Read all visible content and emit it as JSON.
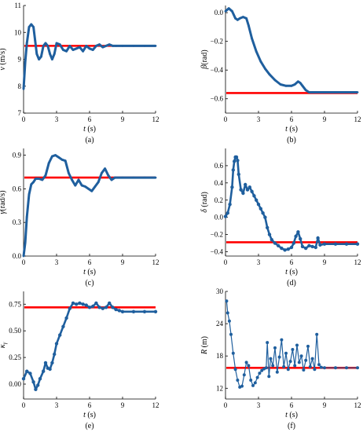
{
  "chart_data": [
    {
      "panel_label": "(a)",
      "type": "line",
      "xlabel_sym": "t",
      "xlabel_unit": " (s)",
      "ylabel_sym": "v",
      "ylabel_unit": " (m/s)",
      "xlim": [
        0,
        12
      ],
      "ylim": [
        7,
        11
      ],
      "xticks": [
        0,
        3,
        6,
        9,
        12
      ],
      "yticks": [
        7,
        8,
        9,
        10,
        11
      ],
      "xtick_labels": [
        "0",
        "3",
        "6",
        "9",
        "12"
      ],
      "ytick_labels": [
        "7",
        "8",
        "9",
        "10",
        "11"
      ],
      "reference": 9.5,
      "reference_color": "#ff0000",
      "series_color": "#1f5f9e",
      "x": [
        0,
        0.15,
        0.3,
        0.5,
        0.7,
        0.9,
        1.05,
        1.2,
        1.4,
        1.6,
        1.8,
        2.0,
        2.2,
        2.4,
        2.6,
        2.8,
        3.0,
        3.3,
        3.6,
        3.9,
        4.2,
        4.5,
        4.8,
        5.1,
        5.4,
        5.7,
        6.0,
        6.3,
        6.6,
        6.9,
        7.2,
        7.5,
        7.8,
        8.1,
        8.4,
        9,
        10,
        11,
        12
      ],
      "y": [
        7.9,
        8.9,
        9.6,
        10.2,
        10.3,
        10.2,
        9.7,
        9.2,
        9.0,
        9.1,
        9.5,
        9.6,
        9.5,
        9.2,
        9.0,
        9.2,
        9.6,
        9.55,
        9.35,
        9.3,
        9.5,
        9.35,
        9.4,
        9.45,
        9.3,
        9.5,
        9.4,
        9.35,
        9.5,
        9.55,
        9.45,
        9.5,
        9.55,
        9.5,
        9.5,
        9.5,
        9.5,
        9.5,
        9.5
      ]
    },
    {
      "panel_label": "(b)",
      "type": "line",
      "xlabel_sym": "t",
      "xlabel_unit": " (s)",
      "ylabel_sym": "β",
      "ylabel_unit": "(rad)",
      "xlim": [
        0,
        12
      ],
      "ylim": [
        -0.7,
        0.05
      ],
      "xticks": [
        0,
        3,
        6,
        9,
        12
      ],
      "yticks": [
        0,
        -0.2,
        -0.4,
        -0.6
      ],
      "xtick_labels": [
        "0",
        "3",
        "6",
        "9",
        "12"
      ],
      "ytick_labels": [
        "0.0",
        "−0.2",
        "−0.4",
        "−0.6"
      ],
      "reference": -0.56,
      "reference_color": "#ff0000",
      "series_color": "#1f5f9e",
      "x": [
        0,
        0.3,
        0.6,
        0.9,
        1.1,
        1.3,
        1.6,
        1.9,
        2.1,
        2.4,
        2.8,
        3.2,
        3.6,
        4.0,
        4.5,
        5.0,
        5.5,
        6.0,
        6.3,
        6.6,
        6.8,
        7.0,
        7.3,
        7.6,
        8.0,
        9,
        10,
        11,
        12
      ],
      "y": [
        0.01,
        0.03,
        0.01,
        -0.04,
        -0.05,
        -0.04,
        -0.03,
        -0.04,
        -0.09,
        -0.18,
        -0.27,
        -0.34,
        -0.39,
        -0.43,
        -0.47,
        -0.5,
        -0.51,
        -0.51,
        -0.5,
        -0.48,
        -0.49,
        -0.51,
        -0.54,
        -0.555,
        -0.555,
        -0.555,
        -0.555,
        -0.555,
        -0.555
      ]
    },
    {
      "panel_label": "(c)",
      "type": "line",
      "xlabel_sym": "t",
      "xlabel_unit": " (s)",
      "ylabel_sym": "γ",
      "ylabel_unit": "(rad/s)",
      "xlim": [
        0,
        12
      ],
      "ylim": [
        0,
        0.96
      ],
      "xticks": [
        0,
        3,
        6,
        9,
        12
      ],
      "yticks": [
        0,
        0.3,
        0.6,
        0.9
      ],
      "xtick_labels": [
        "0",
        "3",
        "6",
        "9",
        "12"
      ],
      "ytick_labels": [
        "0.0",
        "0.3",
        "0.6",
        "0.9"
      ],
      "reference": 0.7,
      "reference_color": "#ff0000",
      "series_color": "#1f5f9e",
      "x": [
        0,
        0.15,
        0.3,
        0.5,
        0.7,
        0.9,
        1.1,
        1.4,
        1.7,
        2.0,
        2.3,
        2.6,
        2.9,
        3.2,
        3.5,
        3.8,
        4.1,
        4.4,
        4.7,
        5.0,
        5.3,
        5.6,
        5.9,
        6.2,
        6.5,
        6.8,
        7.1,
        7.4,
        7.7,
        8.0,
        8.3,
        9,
        10,
        11,
        12
      ],
      "y": [
        0,
        0.12,
        0.35,
        0.55,
        0.64,
        0.66,
        0.69,
        0.69,
        0.68,
        0.72,
        0.83,
        0.89,
        0.9,
        0.88,
        0.86,
        0.85,
        0.74,
        0.68,
        0.63,
        0.68,
        0.63,
        0.62,
        0.6,
        0.58,
        0.62,
        0.66,
        0.74,
        0.78,
        0.72,
        0.68,
        0.7,
        0.7,
        0.7,
        0.7,
        0.7
      ]
    },
    {
      "panel_label": "(d)",
      "type": "scatter",
      "xlabel_sym": "t",
      "xlabel_unit": " (s)",
      "ylabel_sym": "δ",
      "ylabel_unit": " (rad)",
      "xlim": [
        0,
        12
      ],
      "ylim": [
        -0.45,
        0.8
      ],
      "xticks": [
        0,
        3,
        6,
        9,
        12
      ],
      "yticks": [
        -0.4,
        -0.2,
        0,
        0.2,
        0.4,
        0.6
      ],
      "xtick_labels": [
        "0",
        "3",
        "6",
        "9",
        "12"
      ],
      "ytick_labels": [
        "−0.4",
        "−0.2",
        "0.0",
        "0.2",
        "0.4",
        "0.6"
      ],
      "reference": -0.29,
      "reference_color": "#ff0000",
      "series_color": "#1f5f9e",
      "x": [
        0,
        0.2,
        0.4,
        0.6,
        0.7,
        0.8,
        0.9,
        1.0,
        1.1,
        1.2,
        1.4,
        1.6,
        1.8,
        2.0,
        2.2,
        2.4,
        2.6,
        2.8,
        3.0,
        3.2,
        3.4,
        3.6,
        3.8,
        4.0,
        4.2,
        4.5,
        4.8,
        5.1,
        5.4,
        5.7,
        6.0,
        6.2,
        6.4,
        6.6,
        6.8,
        7.0,
        7.3,
        7.6,
        7.9,
        8.2,
        8.4,
        8.6,
        9,
        10,
        11,
        12
      ],
      "y": [
        0.01,
        0.05,
        0.15,
        0.35,
        0.55,
        0.65,
        0.7,
        0.7,
        0.66,
        0.5,
        0.32,
        0.28,
        0.38,
        0.32,
        0.35,
        0.3,
        0.25,
        0.2,
        0.15,
        0.1,
        0.05,
        0.0,
        -0.12,
        -0.2,
        -0.26,
        -0.3,
        -0.33,
        -0.36,
        -0.38,
        -0.37,
        -0.35,
        -0.3,
        -0.22,
        -0.17,
        -0.25,
        -0.34,
        -0.36,
        -0.33,
        -0.34,
        -0.35,
        -0.24,
        -0.32,
        -0.31,
        -0.31,
        -0.31,
        -0.31
      ]
    },
    {
      "panel_label": "(e)",
      "type": "scatter",
      "xlabel_sym": "t",
      "xlabel_unit": " (s)",
      "ylabel_sym": "κ",
      "ylabel_unit": "",
      "ylabel_sub": "γ",
      "xlim": [
        0,
        12
      ],
      "ylim": [
        -0.14,
        0.87
      ],
      "xticks": [
        0,
        3,
        6,
        9,
        12
      ],
      "yticks": [
        0,
        0.25,
        0.5,
        0.75
      ],
      "xtick_labels": [
        "0",
        "3",
        "6",
        "9",
        "12"
      ],
      "ytick_labels": [
        "0.00",
        "0.25",
        "0.50",
        "0.75"
      ],
      "reference": 0.72,
      "reference_color": "#ff0000",
      "series_color": "#1f5f9e",
      "x": [
        0,
        0.3,
        0.6,
        0.9,
        1.1,
        1.3,
        1.5,
        1.8,
        2.0,
        2.2,
        2.4,
        2.6,
        2.8,
        3.0,
        3.3,
        3.6,
        3.9,
        4.2,
        4.5,
        4.8,
        5.1,
        5.4,
        5.7,
        6.0,
        6.3,
        6.6,
        6.9,
        7.2,
        7.5,
        7.8,
        8.1,
        8.4,
        8.7,
        9.0,
        10,
        11,
        12
      ],
      "y": [
        0.05,
        0.12,
        0.1,
        0.02,
        -0.05,
        -0.01,
        0.05,
        0.12,
        0.2,
        0.15,
        0.14,
        0.2,
        0.28,
        0.38,
        0.46,
        0.54,
        0.62,
        0.71,
        0.76,
        0.75,
        0.76,
        0.75,
        0.74,
        0.72,
        0.73,
        0.76,
        0.72,
        0.71,
        0.72,
        0.76,
        0.72,
        0.7,
        0.69,
        0.68,
        0.68,
        0.68,
        0.68
      ]
    },
    {
      "panel_label": "(f)",
      "type": "scatter",
      "xlabel_sym": "t",
      "xlabel_unit": " (s)",
      "ylabel_sym": "R",
      "ylabel_unit": " (m)",
      "xlim": [
        0,
        12
      ],
      "ylim": [
        10,
        30
      ],
      "xticks": [
        0,
        3,
        6,
        9,
        12
      ],
      "yticks": [
        12,
        18,
        24,
        30
      ],
      "xtick_labels": [
        "0",
        "3",
        "6",
        "9",
        "12"
      ],
      "ytick_labels": [
        "12",
        "18",
        "24",
        "30"
      ],
      "reference": 15.8,
      "reference_color": "#ff0000",
      "series_color": "#1f5f9e",
      "x": [
        0.1,
        0.2,
        0.35,
        0.5,
        0.7,
        0.9,
        1.1,
        1.3,
        1.5,
        1.7,
        1.9,
        2.1,
        2.3,
        2.5,
        2.7,
        2.9,
        3.1,
        3.3,
        3.5,
        3.7,
        3.8,
        3.95,
        4.1,
        4.3,
        4.5,
        4.7,
        4.9,
        5.1,
        5.3,
        5.5,
        5.7,
        5.9,
        6.1,
        6.3,
        6.5,
        6.7,
        6.9,
        7.1,
        7.3,
        7.5,
        7.7,
        7.9,
        8.1,
        8.3,
        8.5,
        8.7,
        9,
        10,
        11,
        12
      ],
      "y": [
        28.2,
        26,
        24.5,
        22,
        18.5,
        15.5,
        13.5,
        12.2,
        12.4,
        14.5,
        16.8,
        16.2,
        13.5,
        12.5,
        13.0,
        14.0,
        14.8,
        15.3,
        15.6,
        15.8,
        20.5,
        14.2,
        17.5,
        16.2,
        19.5,
        15.0,
        17.8,
        21.0,
        16.0,
        18.5,
        15.5,
        17.0,
        19.2,
        16.2,
        20.0,
        16.8,
        18.0,
        15.4,
        17.2,
        19.8,
        16.0,
        17.5,
        15.5,
        22.0,
        16.4,
        15.9,
        15.8,
        15.8,
        15.8,
        15.8
      ]
    }
  ]
}
